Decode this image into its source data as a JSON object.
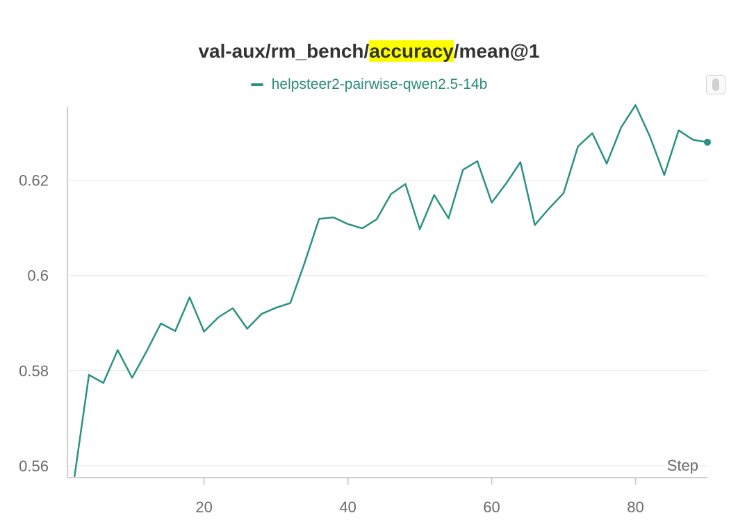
{
  "title": {
    "prefix": "val-aux/rm_bench/",
    "highlight": "accuracy",
    "suffix": "/mean@1"
  },
  "colors": {
    "series": "#2a9184",
    "highlight": "#fcff00",
    "grid": "#e6e6e6",
    "axis": "#cfcfcf"
  },
  "chart_data": {
    "type": "line",
    "title": "val-aux/rm_bench/accuracy/mean@1",
    "xlabel": "Step",
    "ylabel": "",
    "xlim": [
      1,
      90
    ],
    "ylim": [
      0.5575,
      0.636
    ],
    "x_ticks": [
      20,
      40,
      60,
      80
    ],
    "y_ticks": [
      0.56,
      0.58,
      0.6,
      0.62
    ],
    "y_tick_labels": [
      "0.56",
      "0.58",
      "0.6",
      "0.62"
    ],
    "grid": true,
    "legend_position": "top-center",
    "series": [
      {
        "name": "helpsteer2-pairwise-qwen2.5-14b",
        "x": [
          2,
          4,
          6,
          8,
          10,
          12,
          14,
          16,
          18,
          20,
          22,
          24,
          26,
          28,
          30,
          32,
          34,
          36,
          38,
          40,
          42,
          44,
          46,
          48,
          50,
          52,
          54,
          56,
          58,
          60,
          62,
          64,
          66,
          68,
          70,
          72,
          74,
          76,
          78,
          80,
          82,
          84,
          86,
          88,
          90
        ],
        "y": [
          0.5578,
          0.5791,
          0.5774,
          0.5843,
          0.5785,
          0.584,
          0.5899,
          0.5883,
          0.5954,
          0.5882,
          0.5912,
          0.5931,
          0.5888,
          0.5919,
          0.5932,
          0.5942,
          0.6027,
          0.6119,
          0.6122,
          0.6108,
          0.6099,
          0.6118,
          0.6171,
          0.6192,
          0.6097,
          0.6169,
          0.612,
          0.6222,
          0.624,
          0.6153,
          0.6193,
          0.6238,
          0.6106,
          0.6141,
          0.6173,
          0.6271,
          0.6299,
          0.6235,
          0.6311,
          0.6358,
          0.6292,
          0.6211,
          0.6305,
          0.6285,
          0.628
        ]
      }
    ]
  }
}
